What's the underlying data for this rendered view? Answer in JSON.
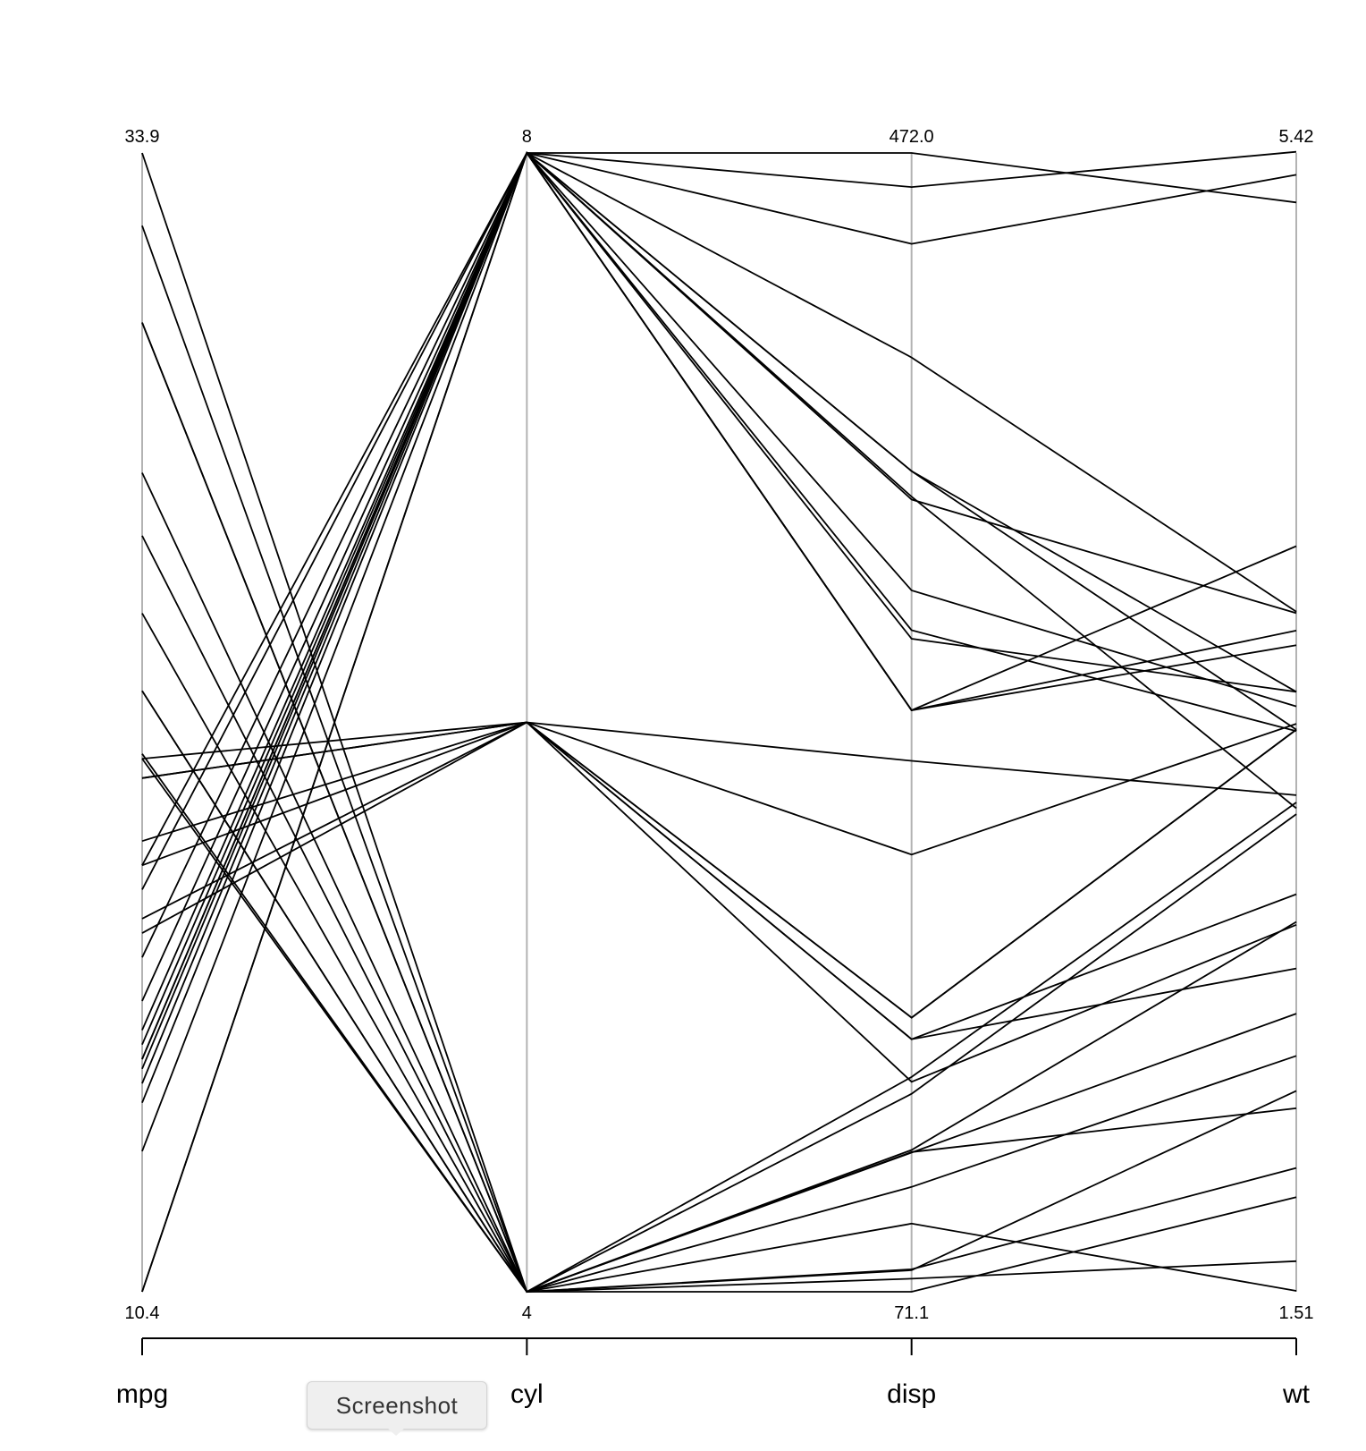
{
  "chart_data": {
    "type": "parallel-coordinates",
    "axes": [
      {
        "name": "mpg",
        "min": 10.4,
        "max": 33.9,
        "min_label": "10.4",
        "max_label": "33.9"
      },
      {
        "name": "cyl",
        "min": 4,
        "max": 8,
        "min_label": "4",
        "max_label": "8"
      },
      {
        "name": "disp",
        "min": 71.1,
        "max": 472.0,
        "min_label": "71.1",
        "max_label": "472.0"
      },
      {
        "name": "wt",
        "min": 1.51,
        "max": 5.42,
        "min_label": "1.51",
        "max_label": "5.42"
      }
    ],
    "records": [
      [
        21.0,
        6,
        160.0,
        2.62
      ],
      [
        21.0,
        6,
        160.0,
        2.875
      ],
      [
        22.8,
        4,
        108.0,
        2.32
      ],
      [
        21.4,
        6,
        258.0,
        3.215
      ],
      [
        18.7,
        8,
        360.0,
        3.44
      ],
      [
        18.1,
        6,
        225.0,
        3.46
      ],
      [
        14.3,
        8,
        360.0,
        3.57
      ],
      [
        24.4,
        4,
        146.7,
        3.19
      ],
      [
        22.8,
        4,
        140.8,
        3.15
      ],
      [
        19.2,
        6,
        167.6,
        3.44
      ],
      [
        17.8,
        6,
        167.6,
        3.44
      ],
      [
        16.4,
        8,
        275.8,
        4.07
      ],
      [
        17.3,
        8,
        275.8,
        3.73
      ],
      [
        15.2,
        8,
        275.8,
        3.78
      ],
      [
        10.4,
        8,
        472.0,
        5.25
      ],
      [
        10.4,
        8,
        460.0,
        5.424
      ],
      [
        14.7,
        8,
        440.0,
        5.345
      ],
      [
        32.4,
        4,
        78.7,
        2.2
      ],
      [
        30.4,
        4,
        75.7,
        1.615
      ],
      [
        33.9,
        4,
        71.1,
        1.835
      ],
      [
        21.5,
        4,
        120.1,
        2.465
      ],
      [
        15.5,
        8,
        318.0,
        3.52
      ],
      [
        15.2,
        8,
        304.0,
        3.435
      ],
      [
        13.3,
        8,
        350.0,
        3.84
      ],
      [
        19.2,
        8,
        400.0,
        3.845
      ],
      [
        27.3,
        4,
        79.0,
        1.935
      ],
      [
        26.0,
        4,
        120.3,
        2.14
      ],
      [
        30.4,
        4,
        95.1,
        1.513
      ],
      [
        15.8,
        8,
        351.0,
        3.17
      ],
      [
        19.7,
        6,
        145.0,
        2.77
      ],
      [
        15.0,
        8,
        301.0,
        3.57
      ],
      [
        21.4,
        4,
        121.0,
        2.78
      ]
    ]
  },
  "tooltip": {
    "label": "Screenshot"
  }
}
